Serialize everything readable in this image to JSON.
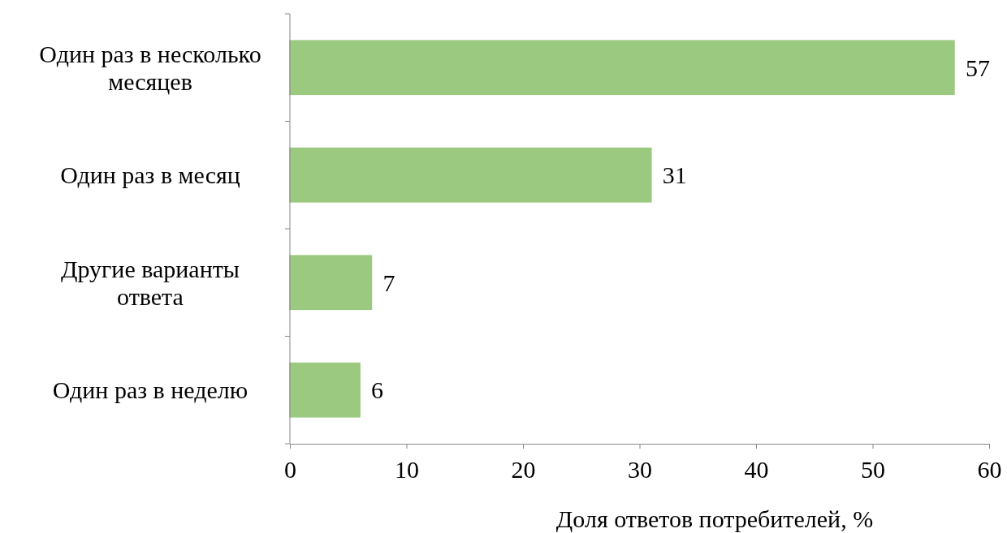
{
  "chart_data": {
    "type": "bar",
    "orientation": "horizontal",
    "xlabel": "Доля ответов потребителей, %",
    "categories": [
      "Один раз в несколько месяцев",
      "Один раз в месяц",
      "Другие варианты ответа",
      "Один раз в неделю"
    ],
    "values": [
      57,
      31,
      7,
      6
    ],
    "color": "#9bc97f",
    "data_labels": true,
    "xlim": [
      0,
      60
    ],
    "xticks": [
      0,
      10,
      20,
      30,
      40,
      50,
      60
    ],
    "grid": false
  }
}
